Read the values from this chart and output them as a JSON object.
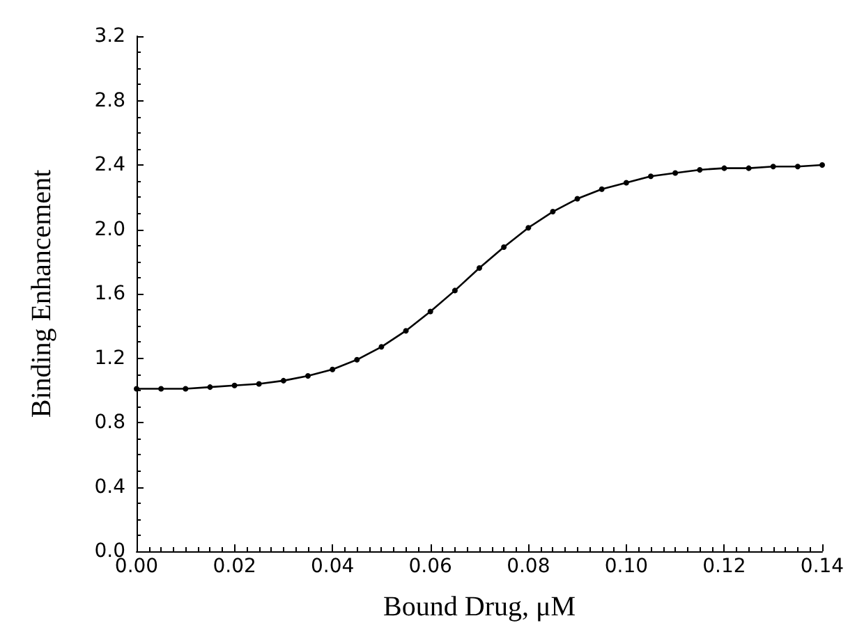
{
  "chart_data": {
    "type": "line",
    "xlabel": "Bound Drug, μM",
    "ylabel": "Binding Enhancement",
    "x": [
      0,
      0.005,
      0.01,
      0.015,
      0.02,
      0.025,
      0.03,
      0.035,
      0.04,
      0.045,
      0.05,
      0.055,
      0.06,
      0.065,
      0.07,
      0.075,
      0.08,
      0.085,
      0.09,
      0.095,
      0.1,
      0.105,
      0.11,
      0.115,
      0.12,
      0.125,
      0.13,
      0.135,
      0.14
    ],
    "series": [
      {
        "color": "#000000",
        "values": [
          1.01,
          1.01,
          1.01,
          1.02,
          1.03,
          1.04,
          1.06,
          1.09,
          1.13,
          1.19,
          1.27,
          1.37,
          1.49,
          1.62,
          1.76,
          1.89,
          2.01,
          2.11,
          2.19,
          2.25,
          2.29,
          2.33,
          2.35,
          2.37,
          2.38,
          2.38,
          2.39,
          2.39,
          2.4
        ]
      }
    ],
    "xlim": [
      0,
      0.14
    ],
    "xticks": [
      {
        "value": 0,
        "label": "0.00"
      },
      0.02,
      0.04,
      0.06,
      0.08,
      {
        "value": 0.1,
        "label": "0.10"
      },
      0.12,
      0.14
    ],
    "ylim": [
      0,
      3.2
    ],
    "yticks": [
      {
        "value": 0,
        "label": "0.0"
      },
      0.4,
      0.8,
      1.2,
      1.6,
      {
        "value": 2,
        "label": "2.0"
      },
      2.4,
      2.8,
      3.2
    ],
    "grid": false,
    "marker": "circle",
    "line_style": "solid"
  }
}
